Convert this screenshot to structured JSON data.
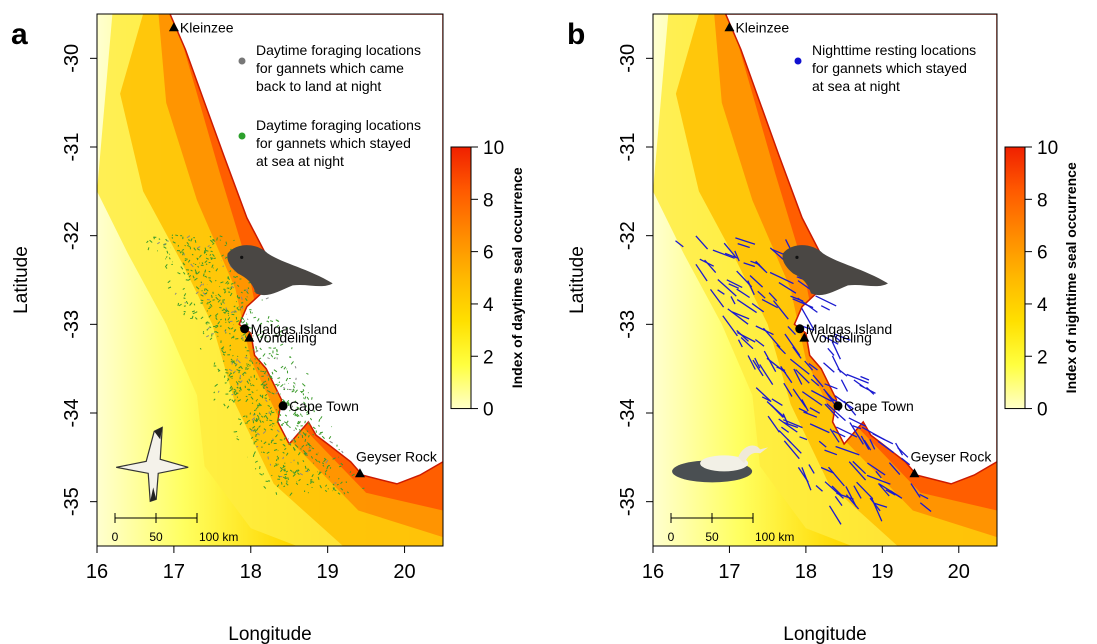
{
  "panels": [
    {
      "letter": "a",
      "legend": [
        {
          "color": "#777777",
          "lines": [
            "Daytime foraging locations",
            "for gannets which came",
            "back to land at night"
          ]
        },
        {
          "color": "#2ca02c",
          "lines": [
            "Daytime foraging locations",
            "for gannets which stayed",
            "at sea at night"
          ]
        }
      ],
      "colorbar_label": "Index of daytime seal occurrence",
      "track_color": "#3a9a2a",
      "bird_icon": "flying-gannet-icon"
    },
    {
      "letter": "b",
      "legend": [
        {
          "color": "#1010d0",
          "lines": [
            "Nighttime resting locations",
            "for gannets which stayed",
            "at sea at night"
          ]
        }
      ],
      "colorbar_label": "Index of nighttime seal occurrence",
      "track_color": "#1a1ad0",
      "bird_icon": "resting-gannet-icon"
    }
  ],
  "axes": {
    "xlabel": "Longitude",
    "ylabel": "Latitude",
    "xticks": [
      "16",
      "17",
      "18",
      "19",
      "20"
    ],
    "yticks": [
      "-30",
      "-31",
      "-32",
      "-33",
      "-34",
      "-35"
    ],
    "colorbar_ticks": [
      "0",
      "2",
      "4",
      "6",
      "8",
      "10"
    ]
  },
  "places": [
    {
      "name": "Kleinzee",
      "marker": "triangle",
      "lon": 17.0,
      "lat": -29.65
    },
    {
      "name": "Malgas Island",
      "marker": "circle",
      "lon": 17.92,
      "lat": -33.05
    },
    {
      "name": "Vondeling",
      "marker": "triangle",
      "lon": 17.98,
      "lat": -33.15
    },
    {
      "name": "Cape Town",
      "marker": "circle",
      "lon": 18.42,
      "lat": -33.92
    },
    {
      "name": "Geyser Rock",
      "marker": "triangle",
      "lon": 19.42,
      "lat": -34.68
    }
  ],
  "scale_bar": {
    "labels": [
      "0",
      "50",
      "100 km"
    ]
  },
  "colorscale": [
    "#ffffc8",
    "#ffff40",
    "#ffe000",
    "#ffb800",
    "#ff8a00",
    "#ff5a00",
    "#f02000"
  ]
}
